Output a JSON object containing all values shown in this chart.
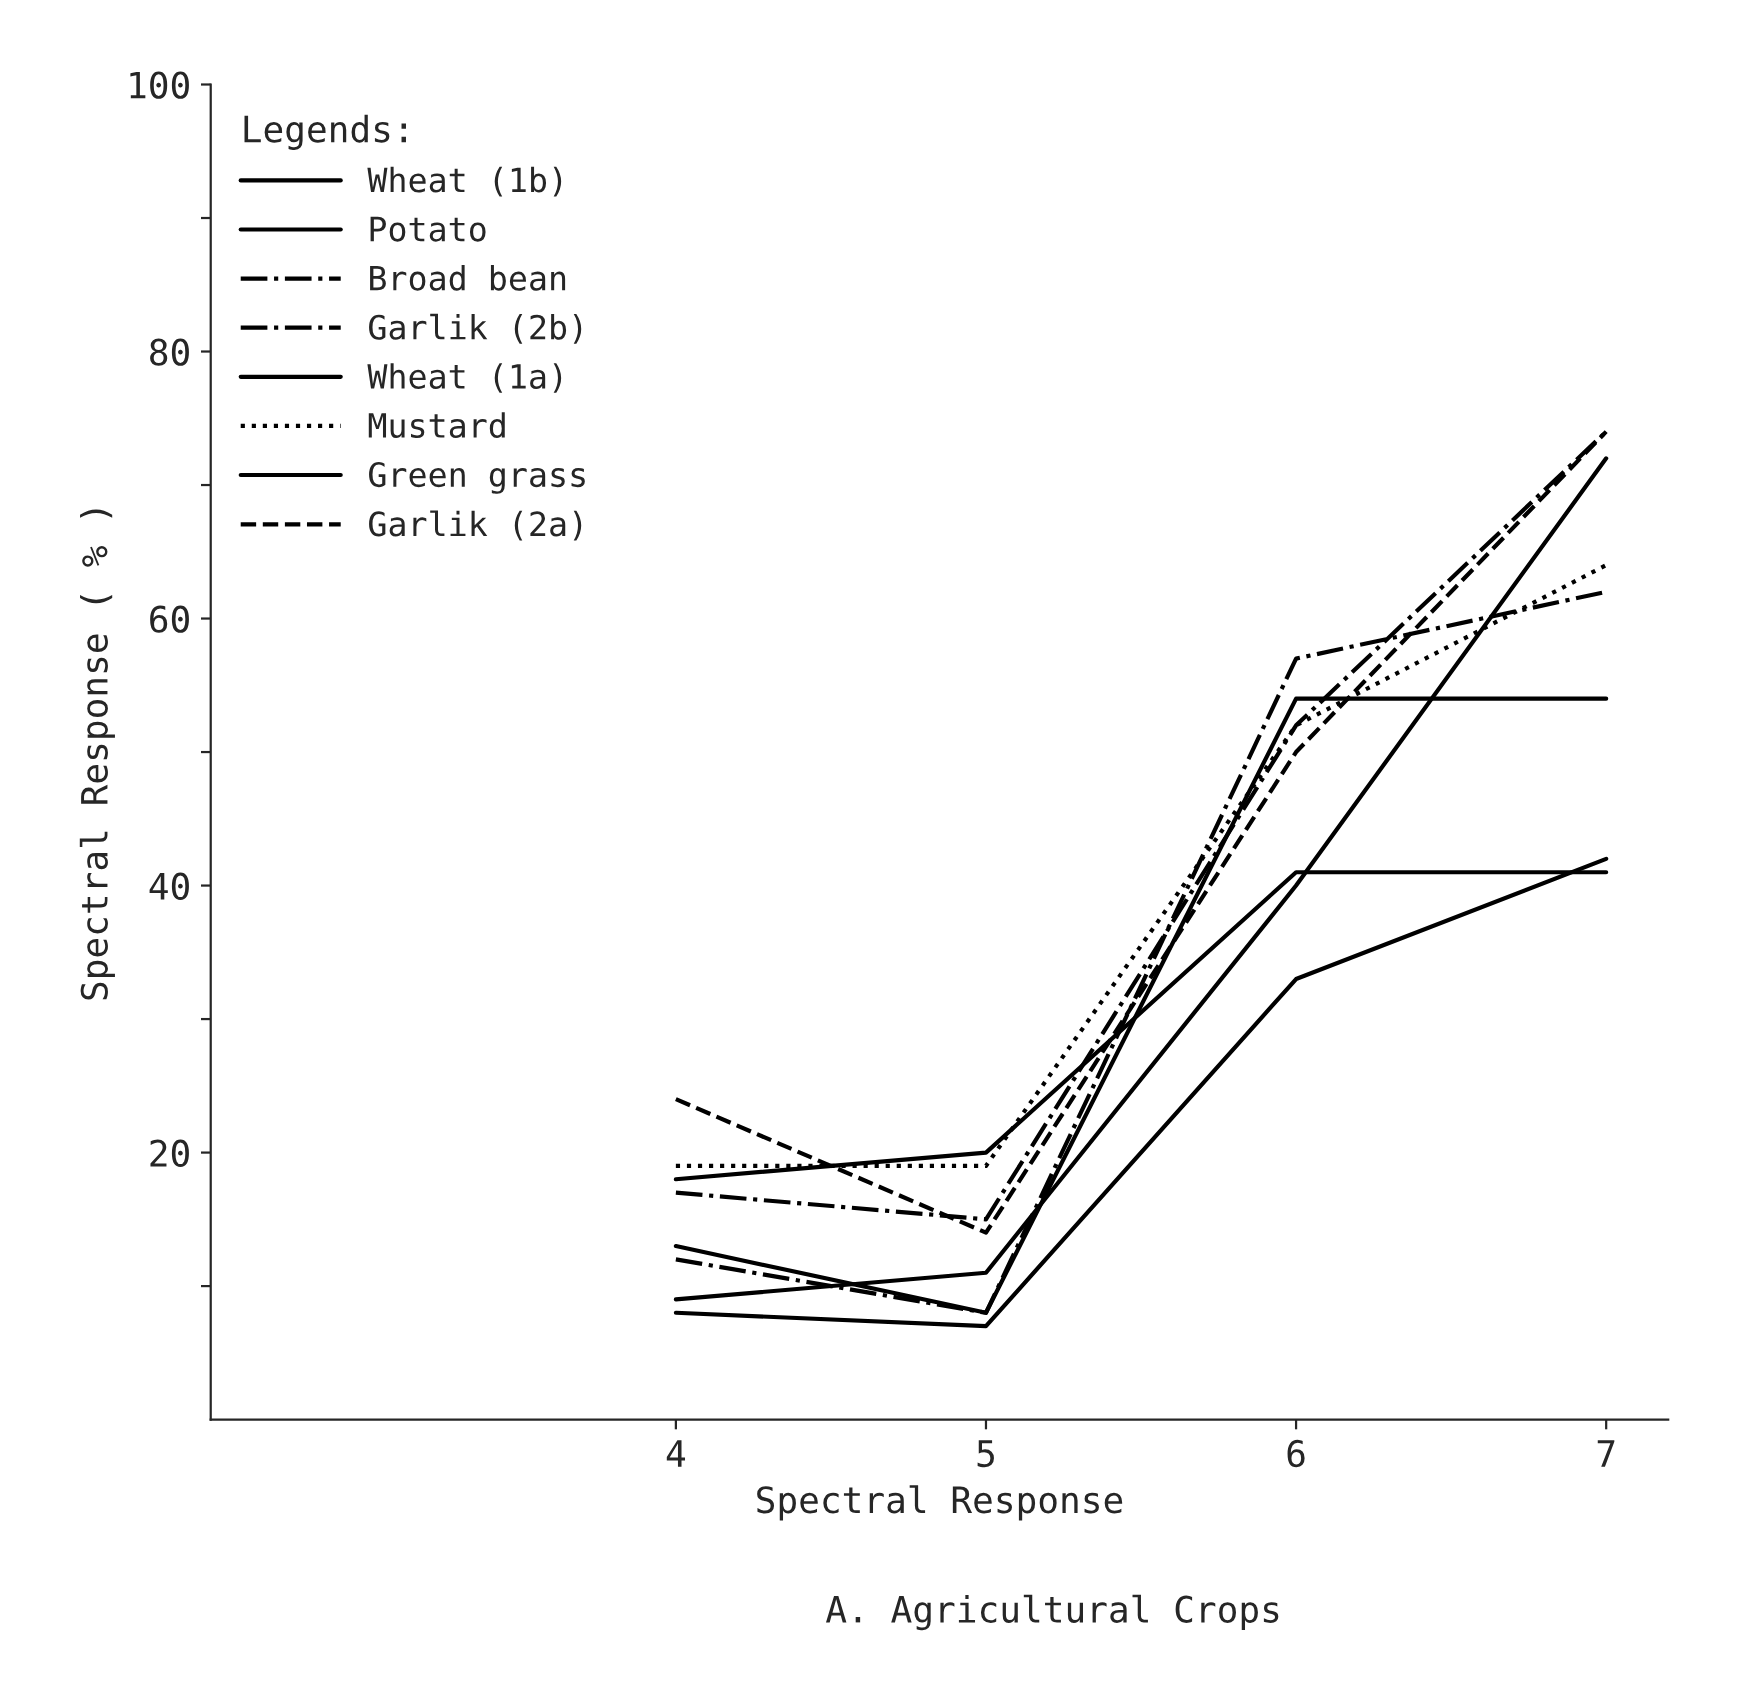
{
  "chart_data": {
    "type": "line",
    "xlabel": "Spectral Response",
    "ylabel": "Spectral Response ( % )",
    "legend_title": "Legends:",
    "annotations": [
      "A. Agricultural Crops"
    ],
    "x": [
      4,
      5,
      6,
      7
    ],
    "xlim": [
      2.5,
      7.2
    ],
    "xticks": [
      4,
      5,
      6,
      7
    ],
    "ylim": [
      0,
      100
    ],
    "yticks": [
      {
        "value": 10,
        "label": null
      },
      20,
      {
        "value": 30,
        "label": null
      },
      40,
      {
        "value": 50,
        "label": null
      },
      60,
      {
        "value": 70,
        "label": null
      },
      80,
      {
        "value": 90,
        "label": null
      },
      100
    ],
    "grid": false,
    "legend": "top left",
    "marker": "none",
    "series": [
      {
        "name": "Wheat (1b)",
        "color": "#000000",
        "line_style": "solid",
        "values": [
          8,
          7,
          33,
          42
        ]
      },
      {
        "name": "Potato",
        "color": "#000000",
        "line_style": "solid",
        "values": [
          9,
          11,
          40,
          72
        ]
      },
      {
        "name": "Broad bean",
        "color": "#000000",
        "line_style": "dashdot",
        "values": [
          12,
          8,
          57,
          62
        ]
      },
      {
        "name": "Garlik (2b)",
        "color": "#000000",
        "line_style": "dashdot",
        "values": [
          17,
          15,
          52,
          74
        ]
      },
      {
        "name": "Wheat (1a)",
        "color": "#000000",
        "line_style": "solid",
        "values": [
          13,
          8,
          54,
          54
        ]
      },
      {
        "name": "Mustard",
        "color": "#000000",
        "line_style": "dotted",
        "values": [
          19,
          19,
          52,
          64
        ]
      },
      {
        "name": "Green grass",
        "color": "#000000",
        "line_style": "solid",
        "values": [
          18,
          20,
          41,
          41
        ]
      },
      {
        "name": "Garlik (2a)",
        "color": "#000000",
        "line_style": "dashed",
        "values": [
          24,
          14,
          50,
          74
        ]
      }
    ]
  }
}
